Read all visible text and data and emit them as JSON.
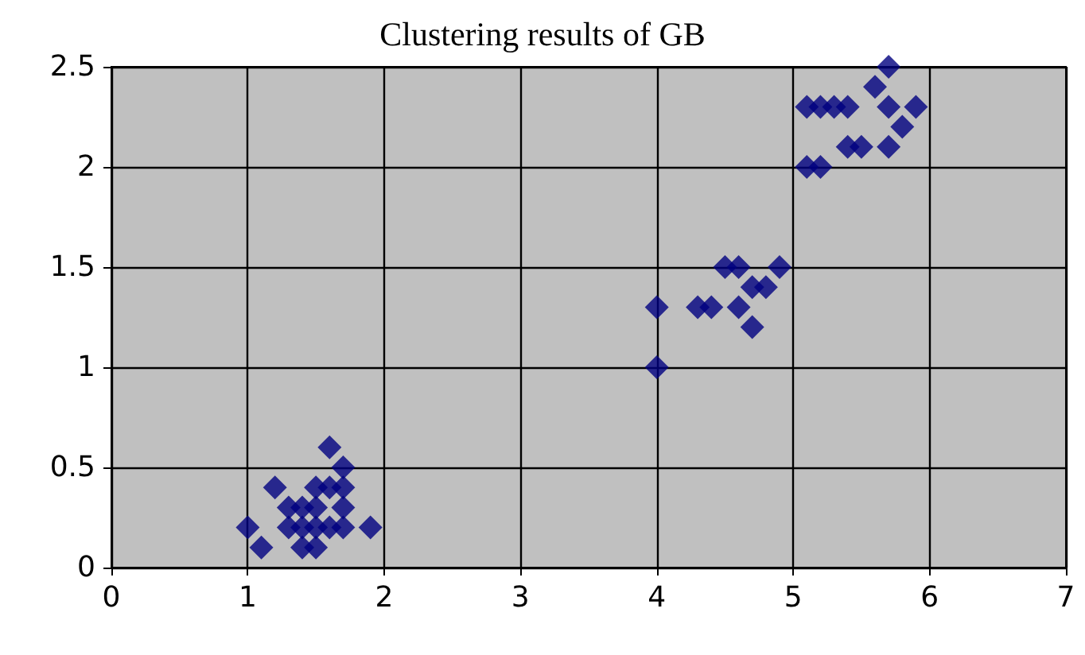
{
  "chart_data": {
    "type": "scatter",
    "title": "Clustering results of GB",
    "marker": "diamond",
    "grid": true,
    "x": [
      1.6,
      1.7,
      1.2,
      1.0,
      1.1,
      1.9,
      1.3,
      1.4,
      1.5,
      1.6,
      1.4,
      1.5,
      1.3,
      1.4,
      1.5,
      1.6,
      1.7,
      1.5,
      1.7,
      1.7,
      4.0,
      4.0,
      4.3,
      4.4,
      4.5,
      4.6,
      4.6,
      4.7,
      4.8,
      4.7,
      4.9,
      5.1,
      5.2,
      5.3,
      5.4,
      5.7,
      5.6,
      5.7,
      5.9,
      5.8,
      5.4,
      5.5,
      5.7,
      5.1,
      5.2
    ],
    "series": [
      {
        "color": "#000080",
        "values": [
          0.6,
          0.5,
          0.4,
          0.2,
          0.1,
          0.2,
          0.2,
          0.2,
          0.2,
          0.2,
          0.3,
          0.4,
          0.3,
          0.1,
          0.1,
          0.4,
          0.4,
          0.3,
          0.3,
          0.2,
          1.3,
          1.0,
          1.3,
          1.3,
          1.5,
          1.5,
          1.3,
          1.4,
          1.4,
          1.2,
          1.5,
          2.3,
          2.3,
          2.3,
          2.3,
          2.5,
          2.4,
          2.3,
          2.3,
          2.2,
          2.1,
          2.1,
          2.1,
          2.0,
          2.0
        ]
      }
    ],
    "xlim": [
      0,
      7
    ],
    "xticks": [
      0,
      1,
      2,
      3,
      4,
      5,
      6,
      7
    ],
    "ylim": [
      0,
      2.5
    ],
    "yticks": [
      0,
      0.5,
      1,
      1.5,
      2,
      2.5
    ]
  }
}
